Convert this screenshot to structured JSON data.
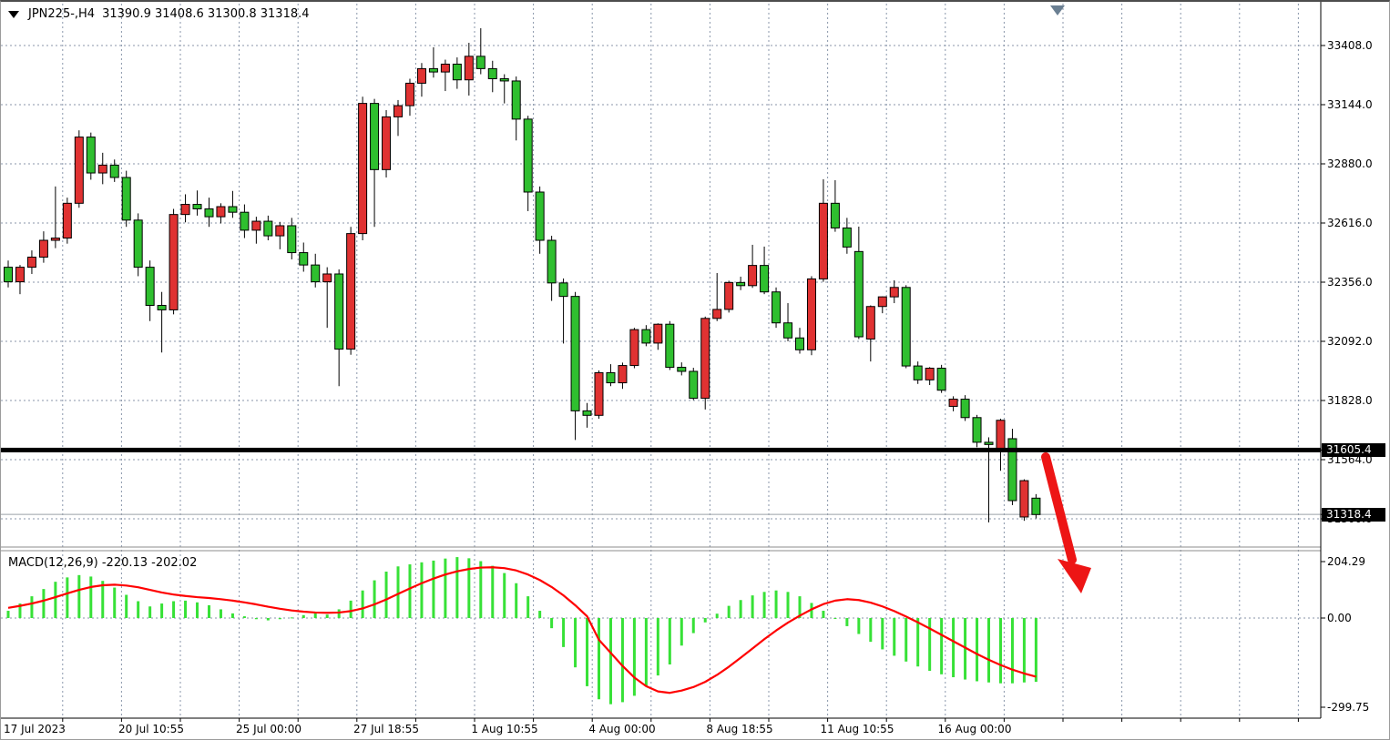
{
  "window": {
    "app": "trading-chart"
  },
  "header": {
    "symbol_period": "JPN225-,H4",
    "quote_ohlc": "31390.9 31408.6 31300.8 31318.4"
  },
  "indicator_panel": {
    "label": "MACD(12,26,9) -220.13 -202.02",
    "axis": {
      "max": "204.29",
      "zero": "0.00",
      "min": "-299.75"
    }
  },
  "price_axis": {
    "labels": [
      "33408.0",
      "33144.0",
      "32880.0",
      "32616.0",
      "32356.0",
      "32092.0",
      "31828.0"
    ],
    "hidden_labels": [
      "31564.0",
      "31300.0"
    ],
    "badges": [
      {
        "text": "31605.4"
      },
      {
        "text": "31318.4"
      }
    ]
  },
  "time_axis": {
    "labels": [
      "17 Jul 2023",
      "20 Jul 10:55",
      "25 Jul 00:00",
      "27 Jul 18:55",
      "1 Aug 10:55",
      "4 Aug 00:00",
      "8 Aug 18:55",
      "11 Aug 10:55",
      "16 Aug 00:00"
    ]
  },
  "colors": {
    "bull_candle": "#e03232",
    "bear_candle": "#2fbf2f",
    "macd_histogram": "#37e137",
    "macd_signal": "#ff0000",
    "grid": "#8996aa",
    "level_line": "#000000",
    "current_price_line": "#9aa0a6",
    "arrow": "#ed1515",
    "badge_bg": "#000000"
  },
  "chart_data": {
    "type": "candlestick",
    "symbol": "JPN225-",
    "timeframe": "H4",
    "current_bar": {
      "open": 31390.9,
      "high": 31408.6,
      "low": 31300.8,
      "close": 31318.4
    },
    "price_axis_range": {
      "top_label": 33408.0,
      "bottom_label": 31300.0,
      "tick_step": 264
    },
    "levels": {
      "horizontal_line": 31605.4,
      "current_price": 31318.4
    },
    "annotations": [
      {
        "type": "arrow",
        "direction": "down-right",
        "meaning": "projected breakdown below 31605.4 support"
      }
    ],
    "candles_ohlc": [
      [
        32420,
        32450,
        32330,
        32355
      ],
      [
        32355,
        32430,
        32300,
        32420
      ],
      [
        32420,
        32495,
        32390,
        32465
      ],
      [
        32465,
        32580,
        32440,
        32540
      ],
      [
        32540,
        32780,
        32505,
        32550
      ],
      [
        32550,
        32730,
        32525,
        32705
      ],
      [
        32705,
        33030,
        32685,
        33000
      ],
      [
        33000,
        33020,
        32810,
        32840
      ],
      [
        32840,
        32930,
        32790,
        32875
      ],
      [
        32875,
        32900,
        32800,
        32820
      ],
      [
        32820,
        32850,
        32600,
        32630
      ],
      [
        32630,
        32660,
        32380,
        32420
      ],
      [
        32420,
        32450,
        32180,
        32250
      ],
      [
        32250,
        32310,
        32040,
        32230
      ],
      [
        32230,
        32680,
        32210,
        32655
      ],
      [
        32655,
        32745,
        32620,
        32700
      ],
      [
        32700,
        32762,
        32650,
        32680
      ],
      [
        32680,
        32730,
        32600,
        32645
      ],
      [
        32645,
        32705,
        32615,
        32690
      ],
      [
        32690,
        32760,
        32640,
        32665
      ],
      [
        32665,
        32700,
        32550,
        32585
      ],
      [
        32585,
        32645,
        32525,
        32625
      ],
      [
        32625,
        32650,
        32540,
        32560
      ],
      [
        32560,
        32622,
        32500,
        32605
      ],
      [
        32605,
        32640,
        32455,
        32485
      ],
      [
        32485,
        32530,
        32400,
        32430
      ],
      [
        32430,
        32480,
        32330,
        32355
      ],
      [
        32355,
        32420,
        32150,
        32390
      ],
      [
        32390,
        32410,
        31890,
        32055
      ],
      [
        32055,
        32600,
        32030,
        32570
      ],
      [
        32570,
        33180,
        32540,
        33150
      ],
      [
        33150,
        33170,
        32600,
        32855
      ],
      [
        32855,
        33120,
        32820,
        33090
      ],
      [
        33090,
        33165,
        33005,
        33140
      ],
      [
        33140,
        33260,
        33095,
        33240
      ],
      [
        33240,
        33330,
        33180,
        33305
      ],
      [
        33305,
        33400,
        33265,
        33290
      ],
      [
        33290,
        33345,
        33205,
        33325
      ],
      [
        33325,
        33355,
        33215,
        33255
      ],
      [
        33255,
        33420,
        33185,
        33360
      ],
      [
        33360,
        33485,
        33280,
        33305
      ],
      [
        33305,
        33340,
        33200,
        33260
      ],
      [
        33260,
        33280,
        33150,
        33250
      ],
      [
        33250,
        33270,
        32985,
        33080
      ],
      [
        33080,
        33095,
        32670,
        32755
      ],
      [
        32755,
        32780,
        32480,
        32540
      ],
      [
        32540,
        32560,
        32270,
        32350
      ],
      [
        32350,
        32370,
        32080,
        32290
      ],
      [
        32290,
        32310,
        31650,
        31780
      ],
      [
        31780,
        31815,
        31705,
        31760
      ],
      [
        31760,
        31960,
        31745,
        31950
      ],
      [
        31950,
        31988,
        31890,
        31905
      ],
      [
        31905,
        31995,
        31878,
        31982
      ],
      [
        31982,
        32150,
        31970,
        32142
      ],
      [
        32142,
        32162,
        32068,
        32082
      ],
      [
        32082,
        32170,
        32052,
        32166
      ],
      [
        32166,
        32180,
        31962,
        31974
      ],
      [
        31974,
        31996,
        31938,
        31956
      ],
      [
        31956,
        31972,
        31828,
        31836
      ],
      [
        31836,
        32200,
        31786,
        32192
      ],
      [
        32192,
        32394,
        32180,
        32232
      ],
      [
        32232,
        32360,
        32218,
        32352
      ],
      [
        32352,
        32378,
        32318,
        32338
      ],
      [
        32338,
        32520,
        32328,
        32428
      ],
      [
        32428,
        32512,
        32300,
        32310
      ],
      [
        32310,
        32330,
        32150,
        32172
      ],
      [
        32172,
        32260,
        32090,
        32105
      ],
      [
        32105,
        32150,
        32035,
        32052
      ],
      [
        32052,
        32380,
        32028,
        32368
      ],
      [
        32368,
        32812,
        32355,
        32705
      ],
      [
        32705,
        32808,
        32578,
        32595
      ],
      [
        32595,
        32640,
        32480,
        32510
      ],
      [
        32490,
        32601,
        32100,
        32110
      ],
      [
        32100,
        32250,
        32000,
        32245
      ],
      [
        32245,
        32290,
        32215,
        32288
      ],
      [
        32288,
        32362,
        32260,
        32330
      ],
      [
        32330,
        32340,
        31970,
        31980
      ],
      [
        31980,
        32000,
        31900,
        31918
      ],
      [
        31918,
        31975,
        31895,
        31970
      ],
      [
        31970,
        31985,
        31860,
        31872
      ],
      [
        31800,
        31845,
        31778,
        31832
      ],
      [
        31832,
        31850,
        31735,
        31750
      ],
      [
        31750,
        31762,
        31618,
        31640
      ],
      [
        31640,
        31662,
        31283,
        31630
      ],
      [
        31608,
        31745,
        31513,
        31738
      ],
      [
        31656,
        31700,
        31360,
        31380
      ],
      [
        31307,
        31475,
        31290,
        31469
      ],
      [
        31391,
        31409,
        31301,
        31318
      ]
    ],
    "macd": {
      "parameters": "12,26,9",
      "current_macd": -220.13,
      "current_signal": -202.02,
      "axis": {
        "max": 204.29,
        "min": -299.75
      },
      "histogram": [
        25,
        50,
        75,
        100,
        125,
        140,
        148,
        143,
        128,
        105,
        80,
        58,
        40,
        50,
        58,
        60,
        54,
        44,
        30,
        16,
        6,
        -4,
        -8,
        -4,
        2,
        10,
        16,
        12,
        30,
        60,
        95,
        130,
        160,
        178,
        185,
        192,
        198,
        205,
        210,
        206,
        196,
        180,
        155,
        120,
        75,
        25,
        -35,
        -100,
        -170,
        -235,
        -280,
        -297,
        -290,
        -268,
        -235,
        -198,
        -160,
        -95,
        -52,
        -15,
        15,
        42,
        62,
        78,
        90,
        95,
        90,
        75,
        52,
        25,
        -2,
        -28,
        -55,
        -82,
        -108,
        -130,
        -150,
        -167,
        -182,
        -194,
        -204,
        -212,
        -218,
        -222,
        -225,
        -225,
        -222,
        -220
      ],
      "signal": [
        35,
        42,
        50,
        60,
        72,
        85,
        97,
        107,
        113,
        115,
        112,
        106,
        97,
        88,
        81,
        76,
        72,
        69,
        65,
        60,
        54,
        47,
        39,
        32,
        26,
        22,
        19,
        18,
        19,
        24,
        33,
        47,
        64,
        83,
        102,
        120,
        136,
        150,
        161,
        169,
        174,
        175,
        172,
        164,
        150,
        131,
        107,
        78,
        44,
        6,
        -75,
        -120,
        -165,
        -205,
        -235,
        -253,
        -258,
        -250,
        -238,
        -220,
        -196,
        -168,
        -137,
        -105,
        -73,
        -43,
        -16,
        8,
        30,
        48,
        60,
        65,
        62,
        53,
        40,
        24,
        5,
        -15,
        -36,
        -58,
        -80,
        -102,
        -124,
        -144,
        -162,
        -178,
        -191,
        -202
      ]
    }
  }
}
